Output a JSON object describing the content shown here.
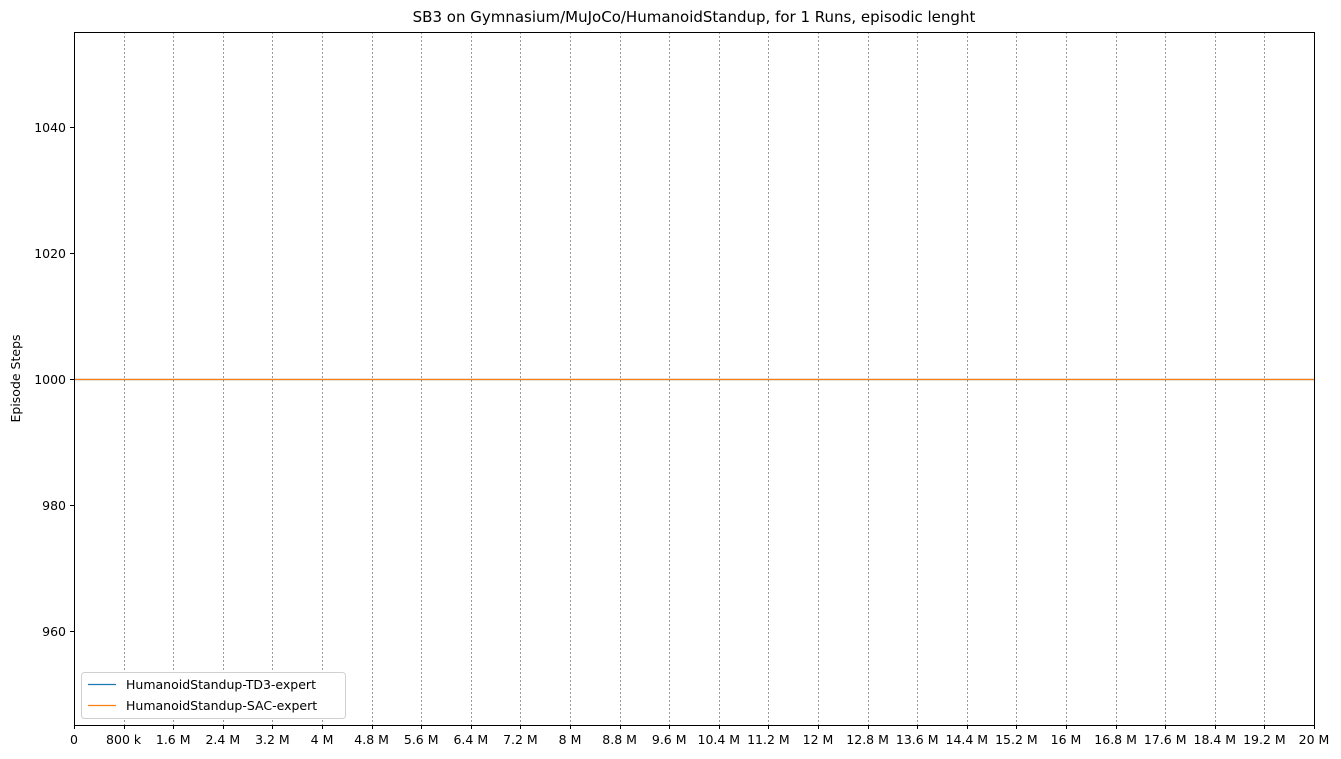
{
  "chart_data": {
    "type": "line",
    "title": "SB3 on Gymnasium/MuJoCo/HumanoidStandup, for 1 Runs, episodic lenght",
    "xlabel": "",
    "ylabel": "Episode Steps",
    "xlim": [
      0,
      20000000
    ],
    "ylim": [
      945,
      1055
    ],
    "x_ticks": [
      0,
      800000,
      1600000,
      2400000,
      3200000,
      4000000,
      4800000,
      5600000,
      6400000,
      7200000,
      8000000,
      8800000,
      9600000,
      10400000,
      11200000,
      12000000,
      12800000,
      13600000,
      14400000,
      15200000,
      16000000,
      16800000,
      17600000,
      18400000,
      19200000,
      20000000
    ],
    "x_tick_labels": [
      "0",
      "800 k",
      "1.6 M",
      "2.4 M",
      "3.2 M",
      "4 M",
      "4.8 M",
      "5.6 M",
      "6.4 M",
      "7.2 M",
      "8 M",
      "8.8 M",
      "9.6 M",
      "10.4 M",
      "11.2 M",
      "12 M",
      "12.8 M",
      "13.6 M",
      "14.4 M",
      "15.2 M",
      "16 M",
      "16.8 M",
      "17.6 M",
      "18.4 M",
      "19.2 M",
      "20 M"
    ],
    "y_ticks": [
      960,
      980,
      1000,
      1020,
      1040
    ],
    "y_tick_labels": [
      "960",
      "980",
      "1000",
      "1020",
      "1040"
    ],
    "vertical_grid": true,
    "horizontal_grid": false,
    "legend_position": "lower-left",
    "series": [
      {
        "name": "HumanoidStandup-TD3-expert",
        "color": "#1f77b4",
        "x": [
          0,
          20000000
        ],
        "y": [
          1000,
          1000
        ]
      },
      {
        "name": "HumanoidStandup-SAC-expert",
        "color": "#ff7f0e",
        "x": [
          0,
          20000000
        ],
        "y": [
          1000,
          1000
        ]
      }
    ]
  }
}
